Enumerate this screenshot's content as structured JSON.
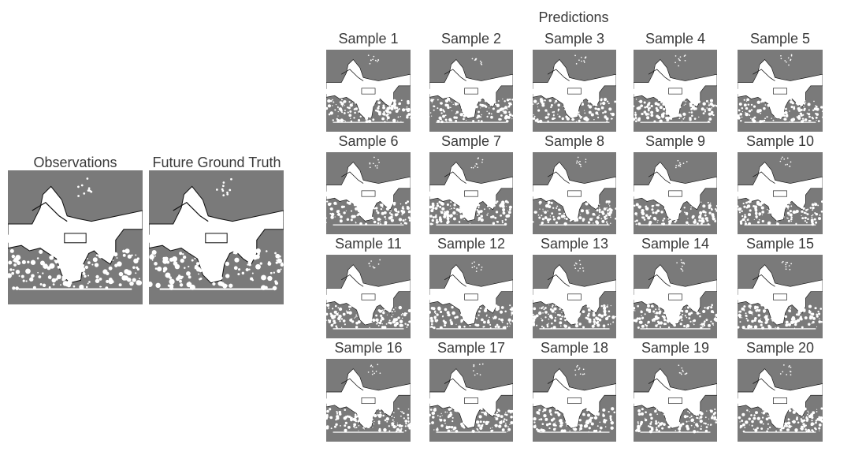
{
  "observations_label": "Observations",
  "ground_truth_label": "Future Ground Truth",
  "predictions_label": "Predictions",
  "samples": [
    "Sample 1",
    "Sample 2",
    "Sample 3",
    "Sample 4",
    "Sample 5",
    "Sample 6",
    "Sample 7",
    "Sample 8",
    "Sample 9",
    "Sample 10",
    "Sample 11",
    "Sample 12",
    "Sample 13",
    "Sample 14",
    "Sample 15",
    "Sample 16",
    "Sample 17",
    "Sample 18",
    "Sample 19",
    "Sample 20"
  ],
  "colors": {
    "occupied": "#7a7a7a",
    "free": "#ffffff",
    "edge": "#111111"
  }
}
